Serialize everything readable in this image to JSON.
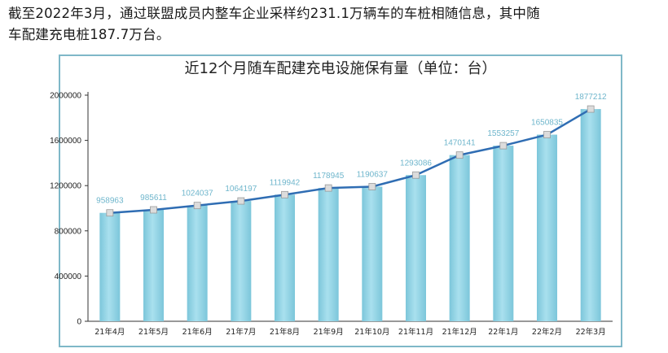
{
  "intro": {
    "line1": "截至2022年3月，通过联盟成员内整车企业采样约231.1万辆车的车桩相随信息，其中随",
    "line2": "车配建充电桩187.7万台。"
  },
  "chart_data": {
    "type": "bar",
    "title": "近12个月随车配建充电设施保有量（单位：台）",
    "categories": [
      "21年4月",
      "21年5月",
      "21年6月",
      "21年7月",
      "21年8月",
      "21年9月",
      "21年10月",
      "21年11月",
      "21年12月",
      "22年1月",
      "22年2月",
      "22年3月"
    ],
    "values": [
      958963,
      985611,
      1024037,
      1064197,
      1119942,
      1178945,
      1190637,
      1293086,
      1470141,
      1553257,
      1650835,
      1877212
    ],
    "yticks": [
      0,
      400000,
      800000,
      1200000,
      1600000,
      2000000
    ],
    "ylim": [
      0,
      2000000
    ],
    "overlay": "line",
    "colors": {
      "bar": "#9ad6e6",
      "line": "#2f6db3",
      "marker": "#dcdcdc"
    }
  }
}
